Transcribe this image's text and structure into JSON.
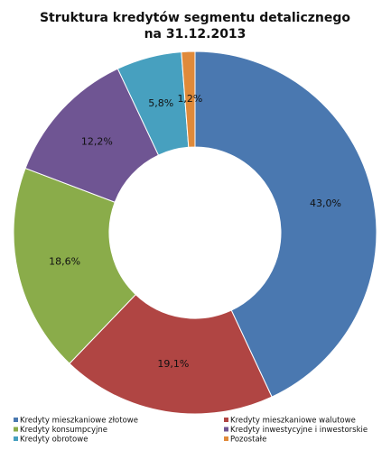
{
  "chart_data": {
    "type": "donut",
    "title": "Struktura kredytów segmentu detalicznego",
    "subtitle": "na 31.12.2013",
    "categories": [
      "Kredyty mieszkaniowe złotowe",
      "Kredyty mieszkaniowe walutowe",
      "Kredyty konsumpcyjne",
      "Kredyty inwestycyjne i inwestorskie",
      "Kredyty obrotowe",
      "Pozostałe"
    ],
    "values": [
      43.0,
      19.1,
      18.6,
      12.2,
      5.8,
      1.2
    ],
    "value_labels": [
      "43,0%",
      "19,1%",
      "18,6%",
      "12,2%",
      "5,8%",
      "1,2%"
    ],
    "colors": [
      "#4a78b0",
      "#b04543",
      "#8aac4a",
      "#6f5593",
      "#47a0bf",
      "#e08a3a"
    ],
    "legend": "bottom"
  }
}
